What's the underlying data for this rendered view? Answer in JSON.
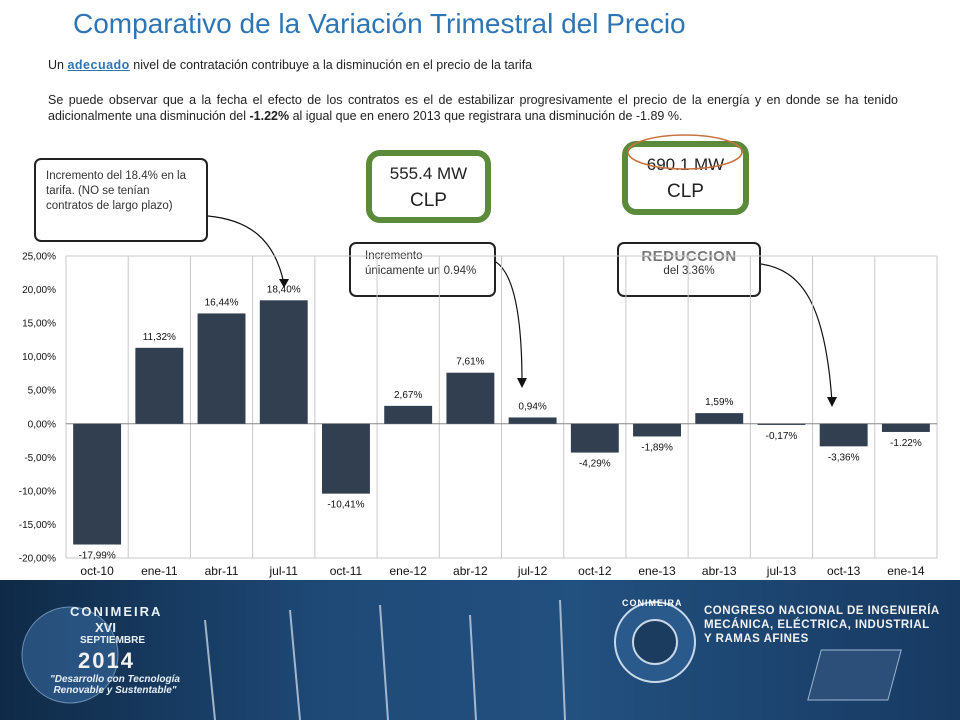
{
  "header": {
    "title": "Comparativo de la Variación  Trimestral del Precio",
    "subtitle_pre": "Un ",
    "subtitle_highlight": "adecuado",
    "subtitle_post": " nivel de contratación  contribuye a la disminución en el precio de la tarifa",
    "paragraph_pre": "Se puede observar que a la fecha el efecto de los contratos  es el de estabilizar progresivamente el precio de la energía y en donde se ha tenido adicionalmente una disminución del ",
    "paragraph_bold": "-1.22%",
    "paragraph_post": " al igual que en enero 2013 que registrara una disminución de -1.89 %."
  },
  "callouts": {
    "c1": "Incremento  del 18.4% en la tarifa. (NO se tenían contratos de largo plazo)",
    "c2": "Incremento únicamente un 0.94%",
    "c3_title": "REDUCCION",
    "c3_text": "del 3.36%"
  },
  "mw_boxes": [
    {
      "mw": "555.4 MW",
      "label": "CLP"
    },
    {
      "mw": "690.1 MW",
      "label": "CLP"
    }
  ],
  "chart_data": {
    "type": "bar",
    "categories": [
      "oct-10",
      "ene-11",
      "abr-11",
      "jul-11",
      "oct-11",
      "ene-12",
      "abr-12",
      "jul-12",
      "oct-12",
      "ene-13",
      "abr-13",
      "jul-13",
      "oct-13",
      "ene-14"
    ],
    "values": [
      -17.99,
      11.32,
      16.44,
      18.4,
      -10.41,
      2.67,
      7.61,
      0.94,
      -4.29,
      -1.89,
      1.59,
      -0.17,
      -3.36,
      -1.22
    ],
    "data_labels": [
      "-17,99%",
      "11,32%",
      "16,44%",
      "18,40%",
      "-10,41%",
      "2,67%",
      "7,61%",
      "0,94%",
      "-4,29%",
      "-1,89%",
      "1,59%",
      "-0,17%",
      "-3,36%",
      "-1.22%"
    ],
    "ylim": [
      -20,
      25
    ],
    "yticks": [
      25,
      20,
      15,
      10,
      5,
      0,
      -5,
      -10,
      -15,
      -20
    ],
    "ytick_labels": [
      "25,00%",
      "20,00%",
      "15,00%",
      "10,00%",
      "5,00%",
      "0,00%",
      "-5,00%",
      "-10,00%",
      "-15,00%",
      "-20,00%"
    ],
    "grid": "vertical",
    "bar_color": "#323f51"
  },
  "footer": {
    "event_name": "CONIMEIRA",
    "edition": "XVI",
    "month": "SEPTIEMBRE",
    "year": "2014",
    "slogan": "\"Desarrollo con Tecnología Renovable y Sustentable\"",
    "brand_arc": "CONIMEIRA",
    "congress_line1": "CONGRESO NACIONAL DE INGENIERÍA",
    "congress_line2": "MECÁNICA, ELÉCTRICA, INDUSTRIAL",
    "congress_line3": "Y RAMAS AFINES"
  }
}
